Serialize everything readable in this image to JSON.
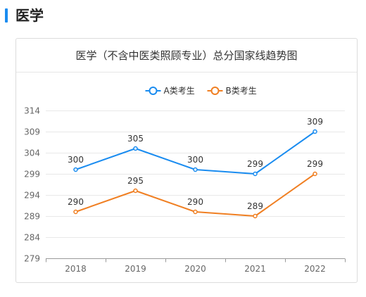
{
  "section": {
    "title": "医学"
  },
  "chart_data": {
    "type": "line",
    "title": "医学（不含中医类照顾专业）总分国家线趋势图",
    "xlabel": "",
    "ylabel": "",
    "categories": [
      "2018",
      "2019",
      "2020",
      "2021",
      "2022"
    ],
    "series": [
      {
        "name": "A类考生",
        "color": "#1a8cf0",
        "values": [
          300,
          305,
          300,
          299,
          309
        ]
      },
      {
        "name": "B类考生",
        "color": "#f07f22",
        "values": [
          290,
          295,
          290,
          289,
          299
        ]
      }
    ],
    "yticks": [
      279,
      284,
      289,
      294,
      299,
      304,
      309,
      314
    ],
    "ylim": [
      279,
      314
    ],
    "grid": true,
    "legend_position": "top-center"
  }
}
